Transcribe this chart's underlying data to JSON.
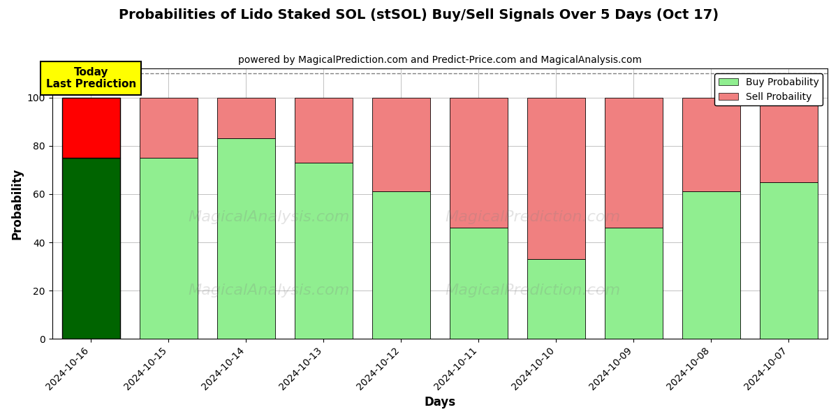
{
  "title": "Probabilities of Lido Staked SOL (stSOL) Buy/Sell Signals Over 5 Days (Oct 17)",
  "subtitle": "powered by MagicalPrediction.com and Predict-Price.com and MagicalAnalysis.com",
  "xlabel": "Days",
  "ylabel": "Probability",
  "dates": [
    "2024-10-16",
    "2024-10-15",
    "2024-10-14",
    "2024-10-13",
    "2024-10-12",
    "2024-10-11",
    "2024-10-10",
    "2024-10-09",
    "2024-10-08",
    "2024-10-07"
  ],
  "buy_values": [
    75,
    75,
    83,
    73,
    61,
    46,
    33,
    46,
    61,
    65
  ],
  "sell_values": [
    25,
    25,
    17,
    27,
    39,
    54,
    67,
    54,
    39,
    35
  ],
  "today_buy_color": "#006400",
  "today_sell_color": "#FF0000",
  "buy_color": "#90EE90",
  "sell_color": "#F08080",
  "today_annotation_text": "Today\nLast Prediction",
  "today_annotation_bg": "#FFFF00",
  "legend_buy_label": "Buy Probability",
  "legend_sell_label": "Sell Probaility",
  "ylim": [
    0,
    112
  ],
  "dashed_line_y": 110,
  "background_color": "#ffffff",
  "grid_color": "#aaaaaa",
  "watermark1": "MagicalAnalysis.com",
  "watermark2": "MagicalPrediction.com"
}
